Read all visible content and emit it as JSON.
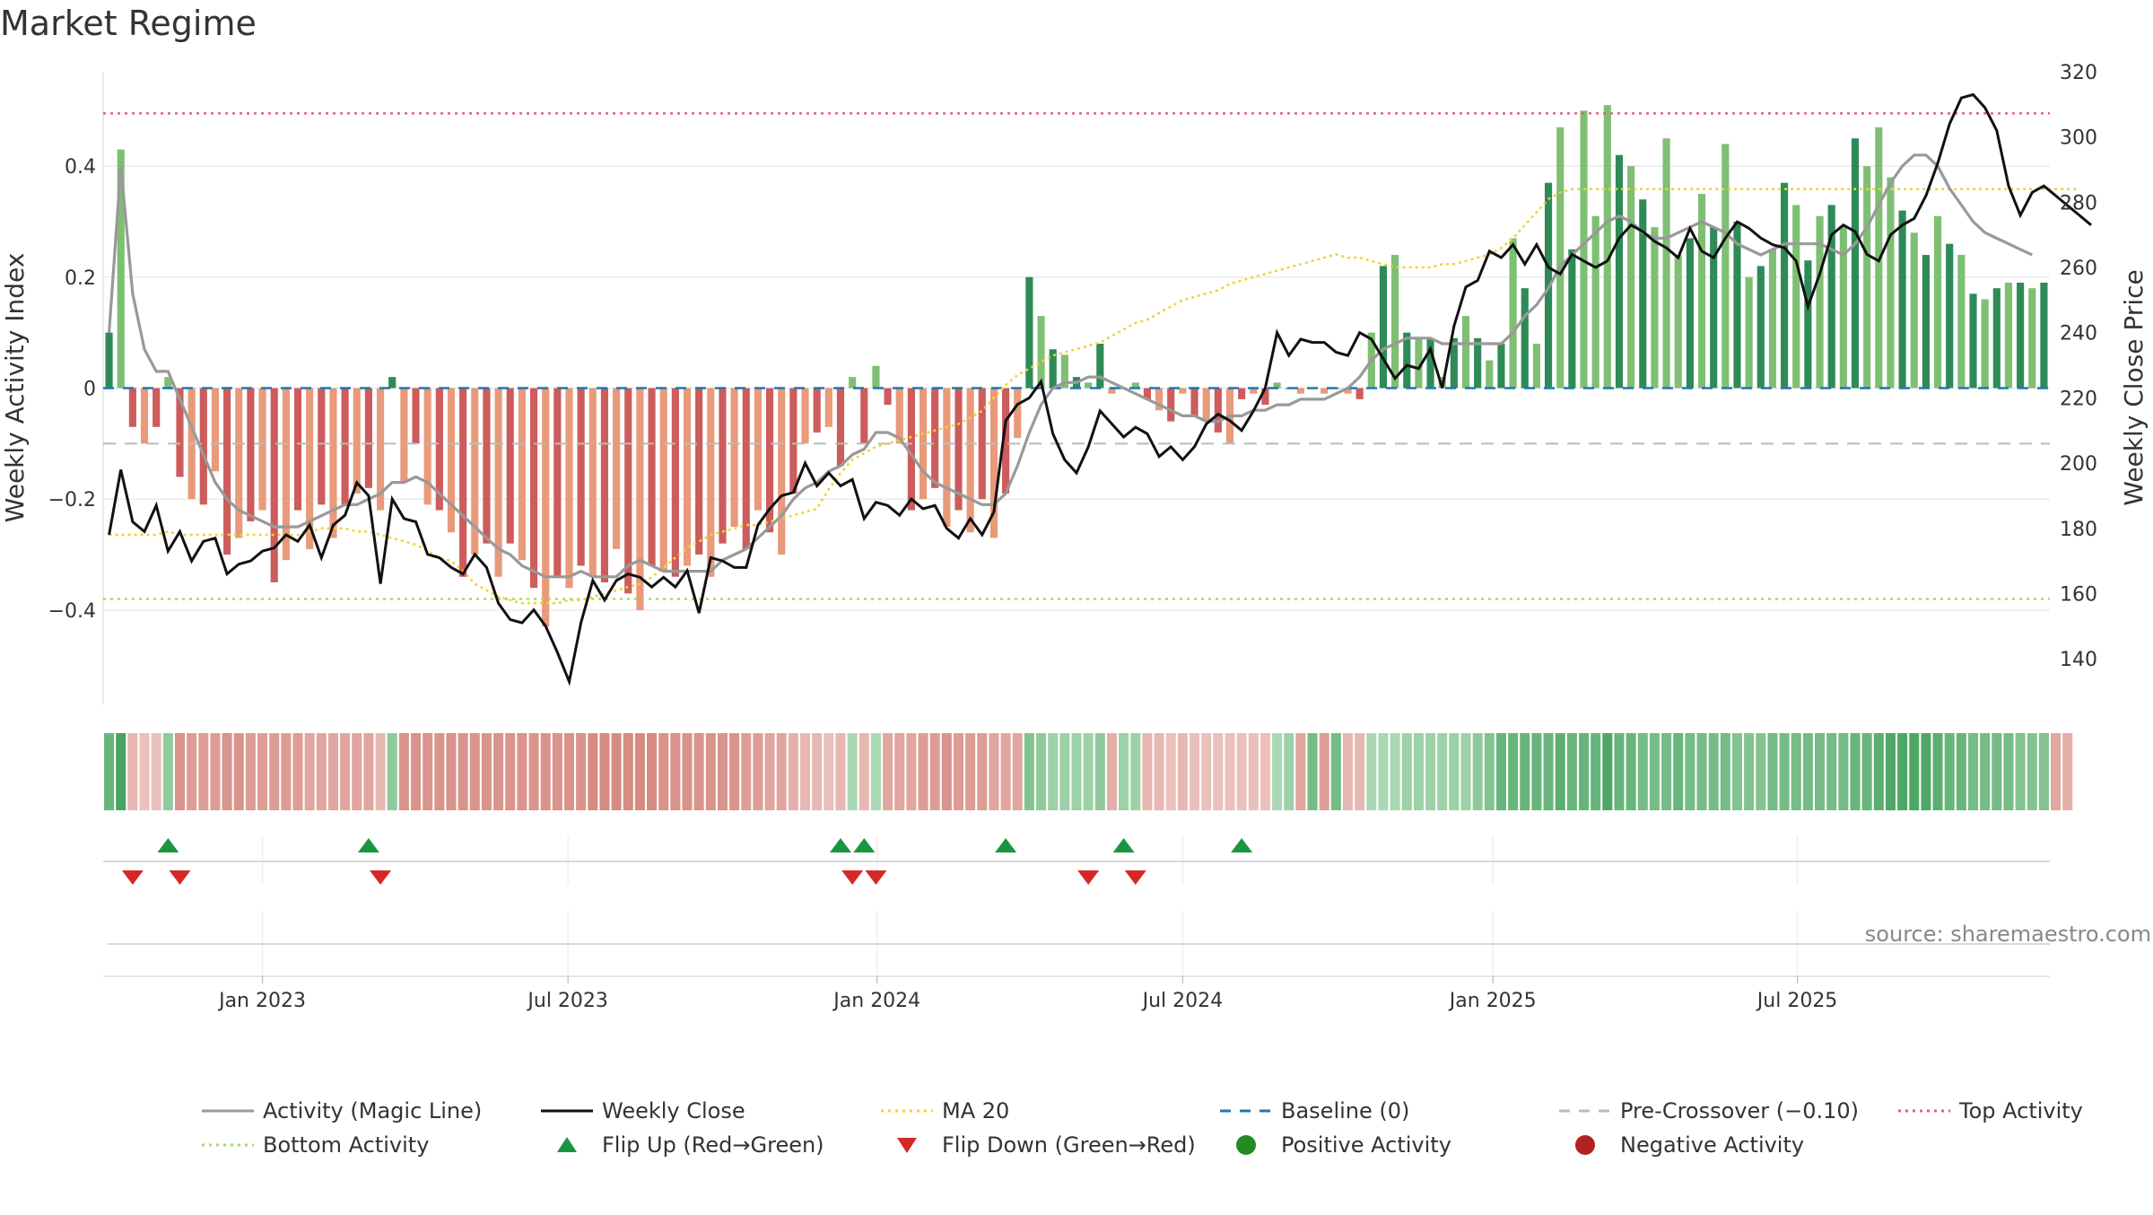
{
  "title": "Market Regime",
  "source": "source: sharemaestro.com",
  "colors": {
    "pos_dark": "#2e8b57",
    "pos_light": "#7fbf73",
    "neg_dark": "#cd5c5c",
    "neg_light": "#e89a7a",
    "magic": "#999999",
    "close": "#111111",
    "ma20": "#f2d233",
    "baseline": "#1f77b4",
    "precross": "#bbbbbb",
    "top": "#e0607e",
    "bottom": "#a6d96a",
    "flip_up": "#1a9641",
    "flip_down": "#d62728",
    "pos_marker": "#228b22",
    "neg_marker": "#b22222",
    "band_pos_strong": "#41a05a",
    "band_pos_weak": "#c4e6c8",
    "band_neg_strong": "#cf7a70",
    "band_neg_weak": "#f1d2ce"
  },
  "chart_data": {
    "type": "bar",
    "title": "Market Regime",
    "ylabel": "Weekly Activity Index",
    "y2label": "Weekly Close Price",
    "ylim": [
      -0.57,
      0.57
    ],
    "y2lim": [
      126,
      320
    ],
    "yticks": [
      {
        "value": -0.4,
        "label": "−0.4"
      },
      {
        "value": -0.2,
        "label": "−0.2"
      },
      {
        "value": 0,
        "label": "0"
      },
      {
        "value": 0.2,
        "label": "0.2"
      },
      {
        "value": 0.4,
        "label": "0.4"
      }
    ],
    "y2ticks": [
      140,
      160,
      180,
      200,
      220,
      240,
      260,
      280,
      300,
      320
    ],
    "xticks": [
      {
        "label": "Jan 2023",
        "index": 13.0
      },
      {
        "label": "Jul 2023",
        "index": 38.9
      },
      {
        "label": "Jan 2024",
        "index": 65.1
      },
      {
        "label": "Jul 2024",
        "index": 91.0
      },
      {
        "label": "Jan 2025",
        "index": 117.3
      },
      {
        "label": "Jul 2025",
        "index": 143.1
      }
    ],
    "top_activity": 0.495,
    "bottom_activity": -0.38,
    "baseline": 0,
    "pre_crossover": -0.1,
    "activity": [
      0.1,
      0.43,
      -0.07,
      -0.1,
      -0.07,
      0.02,
      -0.16,
      -0.2,
      -0.21,
      -0.15,
      -0.3,
      -0.27,
      -0.24,
      -0.22,
      -0.35,
      -0.31,
      -0.22,
      -0.29,
      -0.21,
      -0.27,
      -0.21,
      -0.19,
      -0.18,
      -0.22,
      0.02,
      -0.17,
      -0.1,
      -0.21,
      -0.22,
      -0.26,
      -0.34,
      -0.3,
      -0.28,
      -0.34,
      -0.28,
      -0.31,
      -0.36,
      -0.43,
      -0.34,
      -0.36,
      -0.32,
      -0.34,
      -0.35,
      -0.29,
      -0.37,
      -0.4,
      -0.32,
      -0.33,
      -0.34,
      -0.32,
      -0.3,
      -0.34,
      -0.28,
      -0.25,
      -0.29,
      -0.22,
      -0.26,
      -0.3,
      -0.19,
      -0.1,
      -0.08,
      -0.07,
      -0.14,
      0.02,
      -0.1,
      0.04,
      -0.03,
      -0.1,
      -0.22,
      -0.2,
      -0.18,
      -0.25,
      -0.22,
      -0.26,
      -0.2,
      -0.27,
      -0.19,
      -0.09,
      0.2,
      0.13,
      0.07,
      0.06,
      0.02,
      0.01,
      0.08,
      -0.01,
      0.0,
      0.01,
      -0.02,
      -0.04,
      -0.06,
      -0.01,
      -0.05,
      -0.06,
      -0.08,
      -0.1,
      -0.02,
      -0.01,
      -0.03,
      0.01,
      0.0,
      -0.01,
      0.0,
      -0.01,
      0.0,
      -0.01,
      -0.02,
      0.1,
      0.22,
      0.24,
      0.1,
      0.09,
      0.09,
      0.02,
      0.09,
      0.13,
      0.09,
      0.05,
      0.08,
      0.27,
      0.18,
      0.08,
      0.37,
      0.47,
      0.25,
      0.5,
      0.31,
      0.51,
      0.42,
      0.4,
      0.34,
      0.29,
      0.45,
      0.24,
      0.27,
      0.35,
      0.29,
      0.44,
      0.3,
      0.2,
      0.22,
      0.25,
      0.37,
      0.33,
      0.23,
      0.31,
      0.33,
      0.29,
      0.45,
      0.4,
      0.47,
      0.38,
      0.32,
      0.28,
      0.24,
      0.31,
      0.26,
      0.24,
      0.17,
      0.16,
      0.18,
      0.19,
      0.19,
      0.18,
      0.19
    ],
    "magic_line": [
      0.1,
      0.4,
      0.17,
      0.07,
      0.03,
      0.03,
      -0.02,
      -0.07,
      -0.12,
      -0.17,
      -0.2,
      -0.22,
      -0.23,
      -0.24,
      -0.25,
      -0.25,
      -0.25,
      -0.24,
      -0.23,
      -0.22,
      -0.21,
      -0.21,
      -0.2,
      -0.19,
      -0.17,
      -0.17,
      -0.16,
      -0.17,
      -0.19,
      -0.21,
      -0.23,
      -0.25,
      -0.27,
      -0.29,
      -0.3,
      -0.32,
      -0.33,
      -0.34,
      -0.34,
      -0.34,
      -0.33,
      -0.34,
      -0.34,
      -0.34,
      -0.32,
      -0.31,
      -0.32,
      -0.33,
      -0.33,
      -0.33,
      -0.33,
      -0.33,
      -0.31,
      -0.3,
      -0.29,
      -0.27,
      -0.25,
      -0.23,
      -0.2,
      -0.18,
      -0.17,
      -0.15,
      -0.14,
      -0.12,
      -0.11,
      -0.08,
      -0.08,
      -0.09,
      -0.12,
      -0.15,
      -0.17,
      -0.18,
      -0.19,
      -0.2,
      -0.21,
      -0.21,
      -0.19,
      -0.14,
      -0.08,
      -0.03,
      0.0,
      0.01,
      0.01,
      0.02,
      0.02,
      0.01,
      0.0,
      -0.01,
      -0.02,
      -0.03,
      -0.04,
      -0.05,
      -0.05,
      -0.06,
      -0.06,
      -0.05,
      -0.05,
      -0.04,
      -0.04,
      -0.03,
      -0.03,
      -0.02,
      -0.02,
      -0.02,
      -0.01,
      0.0,
      0.02,
      0.05,
      0.07,
      0.08,
      0.09,
      0.09,
      0.09,
      0.08,
      0.08,
      0.08,
      0.08,
      0.08,
      0.08,
      0.1,
      0.13,
      0.15,
      0.18,
      0.22,
      0.24,
      0.26,
      0.28,
      0.3,
      0.31,
      0.3,
      0.28,
      0.27,
      0.27,
      0.28,
      0.29,
      0.3,
      0.29,
      0.28,
      0.26,
      0.25,
      0.24,
      0.25,
      0.26,
      0.26,
      0.26,
      0.26,
      0.25,
      0.24,
      0.26,
      0.29,
      0.33,
      0.37,
      0.4,
      0.42,
      0.42,
      0.4,
      0.36,
      0.33,
      0.3,
      0.28,
      0.27,
      0.26,
      0.25,
      0.24
    ],
    "weekly_close": [
      178,
      198,
      182,
      179,
      187,
      173,
      179,
      170,
      176,
      177,
      166,
      169,
      170,
      173,
      174,
      178,
      176,
      181,
      171,
      181,
      184,
      194,
      190,
      163,
      189,
      183,
      182,
      172,
      171,
      168,
      166,
      172,
      168,
      157,
      152,
      151,
      155,
      150,
      142,
      133,
      151,
      164,
      158,
      164,
      166,
      165,
      162,
      165,
      162,
      167,
      154,
      171,
      170,
      168,
      168,
      181,
      186,
      190,
      191,
      200,
      193,
      197,
      193,
      195,
      183,
      188,
      187,
      184,
      189,
      186,
      187,
      180,
      177,
      183,
      178,
      185,
      213,
      218,
      220,
      225,
      209,
      201,
      197,
      205,
      216,
      212,
      208,
      211,
      209,
      202,
      205,
      201,
      205,
      212,
      215,
      213,
      210,
      216,
      223,
      240,
      233,
      238,
      237,
      237,
      234,
      233,
      240,
      238,
      232,
      226,
      230,
      229,
      235,
      223,
      242,
      254,
      256,
      265,
      263,
      267,
      261,
      267,
      260,
      258,
      264,
      262,
      260,
      262,
      269,
      273,
      271,
      268,
      266,
      263,
      272,
      265,
      263,
      269,
      274,
      272,
      269,
      267,
      266,
      262,
      248,
      258,
      270,
      273,
      271,
      264,
      262,
      270,
      273,
      275,
      282,
      292,
      304,
      312,
      313,
      309,
      302,
      285,
      276,
      283,
      285,
      282,
      279,
      276,
      273
    ],
    "ma20": [
      178,
      178,
      178,
      178,
      178,
      179,
      178,
      178,
      178,
      178,
      178,
      178,
      178,
      178,
      178,
      178,
      178,
      179,
      180,
      180,
      180,
      179,
      179,
      178,
      177,
      176,
      175,
      173,
      171,
      170,
      167,
      163,
      161,
      159,
      158,
      157,
      157,
      157,
      157,
      158,
      158,
      159,
      160,
      161,
      162,
      163,
      165,
      168,
      171,
      174,
      176,
      178,
      179,
      180,
      181,
      181,
      182,
      183,
      184,
      185,
      186,
      192,
      197,
      201,
      203,
      205,
      206,
      207,
      208,
      209,
      210,
      211,
      212,
      214,
      216,
      220,
      224,
      227,
      229,
      231,
      233,
      234,
      235,
      236,
      237,
      239,
      241,
      243,
      244,
      246,
      248,
      250,
      251,
      252,
      253,
      255,
      256,
      257,
      258,
      259,
      260,
      261,
      262,
      263,
      264,
      263,
      263,
      262,
      261,
      260,
      260,
      260,
      260,
      261,
      261,
      262,
      263,
      264,
      266,
      269,
      273,
      277,
      281,
      283,
      284,
      284,
      284,
      284,
      284,
      284,
      284,
      284,
      284,
      284,
      284,
      284,
      284,
      284,
      284,
      284,
      284,
      284,
      284,
      284,
      284,
      284,
      284,
      284,
      284,
      284,
      284,
      284,
      284,
      284,
      284,
      284,
      284,
      284,
      284,
      284,
      284,
      284,
      284,
      284,
      284,
      284,
      284,
      284
    ],
    "regime_band": [
      0.7,
      0.95,
      0.3,
      0.2,
      0.2,
      0.4,
      0.7,
      0.6,
      0.6,
      0.6,
      0.7,
      0.7,
      0.6,
      0.6,
      0.6,
      0.6,
      0.6,
      0.5,
      0.5,
      0.5,
      0.5,
      0.5,
      0.5,
      0.3,
      0.4,
      0.7,
      0.7,
      0.7,
      0.7,
      0.7,
      0.7,
      0.7,
      0.7,
      0.7,
      0.7,
      0.7,
      0.7,
      0.7,
      0.7,
      0.7,
      0.7,
      0.8,
      0.8,
      0.8,
      0.8,
      0.8,
      0.8,
      0.7,
      0.7,
      0.7,
      0.7,
      0.7,
      0.7,
      0.7,
      0.6,
      0.6,
      0.5,
      0.5,
      0.4,
      0.3,
      0.3,
      0.2,
      0.3,
      0.2,
      0.3,
      0.2,
      0.5,
      0.5,
      0.5,
      0.6,
      0.6,
      0.7,
      0.6,
      0.6,
      0.6,
      0.5,
      0.5,
      0.5,
      0.5,
      0.4,
      0.3,
      0.3,
      0.3,
      0.3,
      0.4,
      0.4,
      0.3,
      0.3,
      0.3,
      0.3,
      0.2,
      0.3,
      0.2,
      0.2,
      0.2,
      0.2,
      0.2,
      0.2,
      0.2,
      0.2,
      0.3,
      0.5,
      0.6,
      0.6,
      0.6,
      0.3,
      0.3,
      0.2,
      0.2,
      0.2,
      0.3,
      0.3,
      0.3,
      0.3,
      0.3,
      0.3,
      0.4,
      0.5,
      0.7,
      0.7,
      0.7,
      0.7,
      0.7,
      0.8,
      0.7,
      0.7,
      0.7,
      0.9,
      0.7,
      0.7,
      0.6,
      0.6,
      0.6,
      0.7,
      0.6,
      0.6,
      0.6,
      0.6,
      0.5,
      0.5,
      0.5,
      0.6,
      0.6,
      0.6,
      0.6,
      0.6,
      0.6,
      0.6,
      0.7,
      0.7,
      0.8,
      0.9,
      0.9,
      0.9,
      0.9,
      0.8,
      0.7,
      0.7,
      0.6,
      0.6,
      0.6,
      0.6,
      0.5,
      0.5,
      0.5,
      0.5,
      0.4
    ],
    "flips_up": [
      5,
      22,
      62,
      64,
      76,
      86,
      96
    ],
    "flips_down": [
      2,
      6,
      23,
      63,
      65,
      83,
      87
    ]
  },
  "legend": [
    {
      "label": "Activity (Magic Line)",
      "kind": "line",
      "color": "#999999",
      "dash": ""
    },
    {
      "label": "Weekly Close",
      "kind": "line",
      "color": "#111111",
      "dash": ""
    },
    {
      "label": "MA 20",
      "kind": "line",
      "color": "#f2d233",
      "dash": "3,5"
    },
    {
      "label": "Baseline (0)",
      "kind": "line",
      "color": "#1f77b4",
      "dash": "12,10"
    },
    {
      "label": "Pre-Crossover (−0.10)",
      "kind": "line",
      "color": "#bbbbbb",
      "dash": "12,10"
    },
    {
      "label": "Top Activity",
      "kind": "line",
      "color": "#e0607e",
      "dash": "3,5"
    },
    {
      "label": "Bottom Activity",
      "kind": "line",
      "color": "#a6d96a",
      "dash": "3,5"
    },
    {
      "label": "Flip Up (Red→Green)",
      "kind": "tri-up",
      "color": "#1a9641"
    },
    {
      "label": "Flip Down (Green→Red)",
      "kind": "tri-down",
      "color": "#d62728"
    },
    {
      "label": "Positive Activity",
      "kind": "dot",
      "color": "#228b22"
    },
    {
      "label": "Negative Activity",
      "kind": "dot",
      "color": "#b22222"
    }
  ]
}
